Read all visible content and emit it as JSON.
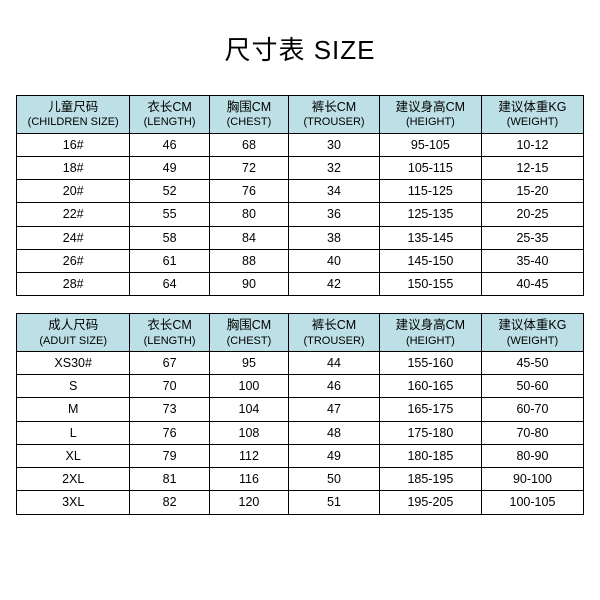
{
  "title": "尺寸表 SIZE",
  "header_bg": "#bde0e6",
  "border_color": "#000000",
  "children": {
    "columns": [
      {
        "main": "儿童尺码",
        "sub": "(CHILDREN SIZE)"
      },
      {
        "main": "衣长CM",
        "sub": "(LENGTH)"
      },
      {
        "main": "胸围CM",
        "sub": "(CHEST)"
      },
      {
        "main": "裤长CM",
        "sub": "(TROUSER)"
      },
      {
        "main": "建议身高CM",
        "sub": "(HEIGHT)"
      },
      {
        "main": "建议体重KG",
        "sub": "(WEIGHT)"
      }
    ],
    "rows": [
      [
        "16#",
        "46",
        "68",
        "30",
        "95-105",
        "10-12"
      ],
      [
        "18#",
        "49",
        "72",
        "32",
        "105-115",
        "12-15"
      ],
      [
        "20#",
        "52",
        "76",
        "34",
        "115-125",
        "15-20"
      ],
      [
        "22#",
        "55",
        "80",
        "36",
        "125-135",
        "20-25"
      ],
      [
        "24#",
        "58",
        "84",
        "38",
        "135-145",
        "25-35"
      ],
      [
        "26#",
        "61",
        "88",
        "40",
        "145-150",
        "35-40"
      ],
      [
        "28#",
        "64",
        "90",
        "42",
        "150-155",
        "40-45"
      ]
    ]
  },
  "adult": {
    "columns": [
      {
        "main": "成人尺码",
        "sub": "(ADUIT SIZE)"
      },
      {
        "main": "衣长CM",
        "sub": "(LENGTH)"
      },
      {
        "main": "胸围CM",
        "sub": "(CHEST)"
      },
      {
        "main": "裤长CM",
        "sub": "(TROUSER)"
      },
      {
        "main": "建议身高CM",
        "sub": "(HEIGHT)"
      },
      {
        "main": "建议体重KG",
        "sub": "(WEIGHT)"
      }
    ],
    "rows": [
      [
        "XS30#",
        "67",
        "95",
        "44",
        "155-160",
        "45-50"
      ],
      [
        "S",
        "70",
        "100",
        "46",
        "160-165",
        "50-60"
      ],
      [
        "M",
        "73",
        "104",
        "47",
        "165-175",
        "60-70"
      ],
      [
        "L",
        "76",
        "108",
        "48",
        "175-180",
        "70-80"
      ],
      [
        "XL",
        "79",
        "112",
        "49",
        "180-185",
        "80-90"
      ],
      [
        "2XL",
        "81",
        "116",
        "50",
        "185-195",
        "90-100"
      ],
      [
        "3XL",
        "82",
        "120",
        "51",
        "195-205",
        "100-105"
      ]
    ]
  }
}
